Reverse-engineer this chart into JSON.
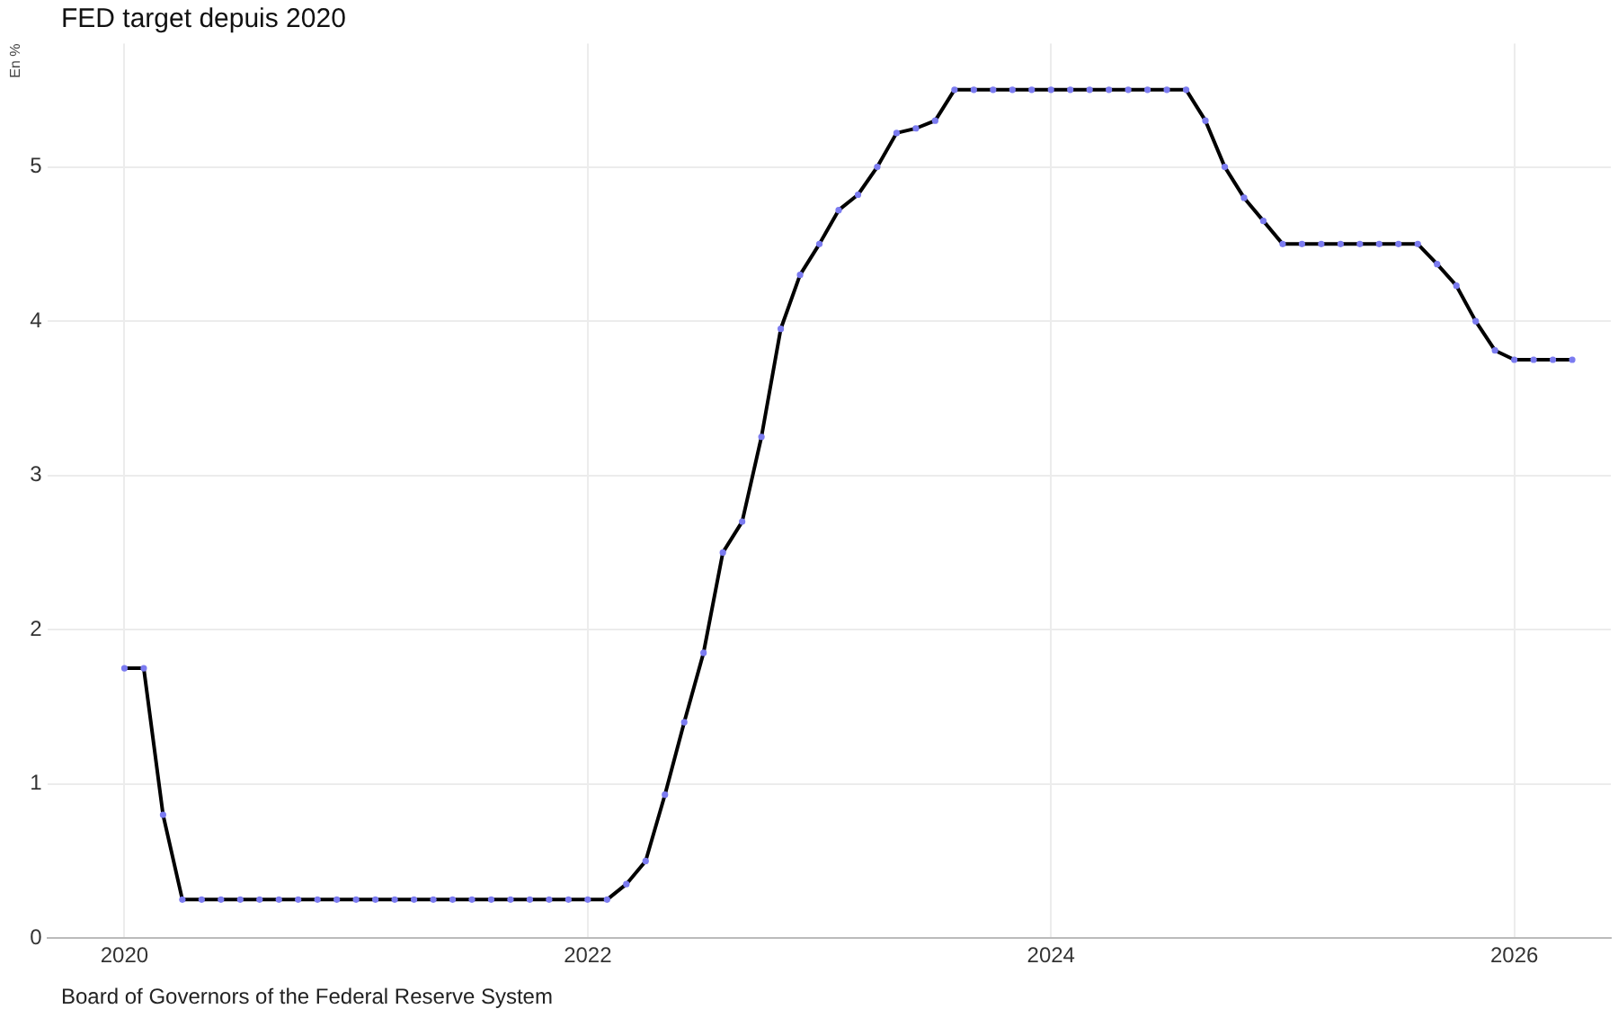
{
  "chart_data": {
    "type": "line",
    "title": "FED target depuis 2020",
    "ylabel": "En %",
    "annotations": [
      "Board of Governors of the Federal Reserve System"
    ],
    "x": [
      "2020-01",
      "2020-02",
      "2020-03",
      "2020-04",
      "2020-05",
      "2020-06",
      "2020-07",
      "2020-08",
      "2020-09",
      "2020-10",
      "2020-11",
      "2020-12",
      "2021-01",
      "2021-02",
      "2021-03",
      "2021-04",
      "2021-05",
      "2021-06",
      "2021-07",
      "2021-08",
      "2021-09",
      "2021-10",
      "2021-11",
      "2021-12",
      "2022-01",
      "2022-02",
      "2022-03",
      "2022-04",
      "2022-05",
      "2022-06",
      "2022-07",
      "2022-08",
      "2022-09",
      "2022-10",
      "2022-11",
      "2022-12",
      "2023-01",
      "2023-02",
      "2023-03",
      "2023-04",
      "2023-05",
      "2023-06",
      "2023-07",
      "2023-08",
      "2023-09",
      "2023-10",
      "2023-11",
      "2023-12",
      "2024-01",
      "2024-02",
      "2024-03",
      "2024-04",
      "2024-05",
      "2024-06",
      "2024-07",
      "2024-08",
      "2024-09",
      "2024-10",
      "2024-11",
      "2024-12",
      "2025-01",
      "2025-02",
      "2025-03",
      "2025-04",
      "2025-05",
      "2025-06",
      "2025-07",
      "2025-08",
      "2025-09",
      "2025-10",
      "2025-11",
      "2025-12",
      "2026-01",
      "2026-02",
      "2026-03",
      "2026-04"
    ],
    "series": [
      {
        "color": "#000000",
        "values": [
          1.75,
          1.75,
          0.8,
          0.25,
          0.25,
          0.25,
          0.25,
          0.25,
          0.25,
          0.25,
          0.25,
          0.25,
          0.25,
          0.25,
          0.25,
          0.25,
          0.25,
          0.25,
          0.25,
          0.25,
          0.25,
          0.25,
          0.25,
          0.25,
          0.25,
          0.25,
          0.35,
          0.5,
          0.93,
          1.4,
          1.85,
          2.5,
          2.7,
          3.25,
          3.95,
          4.3,
          4.5,
          4.72,
          4.82,
          5.0,
          5.22,
          5.25,
          5.3,
          5.5,
          5.5,
          5.5,
          5.5,
          5.5,
          5.5,
          5.5,
          5.5,
          5.5,
          5.5,
          5.5,
          5.5,
          5.5,
          5.3,
          5.0,
          4.8,
          4.65,
          4.5,
          4.5,
          4.5,
          4.5,
          4.5,
          4.5,
          4.5,
          4.5,
          4.37,
          4.23,
          4.0,
          3.81,
          3.75,
          3.75,
          3.75,
          3.75
        ]
      }
    ],
    "xlim": [
      "2019-09",
      "2026-06"
    ],
    "xticks": [
      "2020",
      "2022",
      "2024",
      "2026"
    ],
    "ylim": [
      0,
      5.8
    ],
    "yticks": [
      0,
      1,
      2,
      3,
      4,
      5
    ],
    "grid": true,
    "legend": false,
    "marker": "circle",
    "line_style": "solid"
  }
}
